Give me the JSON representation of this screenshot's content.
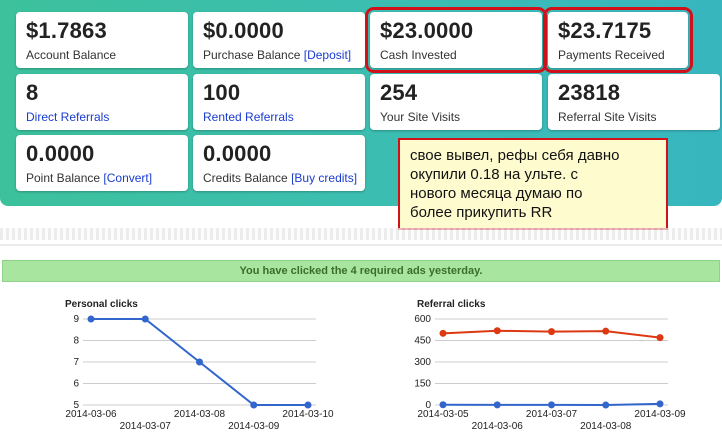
{
  "stats": [
    {
      "value": "$1.7863",
      "label": "Account Balance",
      "link": ""
    },
    {
      "value": "$0.0000",
      "label": "Purchase Balance",
      "link": "[Deposit]"
    },
    {
      "value": "$23.0000",
      "label": "Cash Invested",
      "link": ""
    },
    {
      "value": "$23.7175",
      "label": "Payments Received",
      "link": ""
    },
    {
      "value": "8",
      "label": "Direct Referrals",
      "link": ""
    },
    {
      "value": "100",
      "label": "Rented Referrals",
      "link": ""
    },
    {
      "value": "254",
      "label": "Your Site Visits",
      "link": ""
    },
    {
      "value": "23818",
      "label": "Referral Site Visits",
      "link": ""
    },
    {
      "value": "0.0000",
      "label": "Point Balance",
      "link": "[Convert]"
    },
    {
      "value": "0.0000",
      "label": "Credits Balance",
      "link": "[Buy credits]"
    }
  ],
  "note": {
    "lines": [
      "свое вывел, рефы себя давно",
      "окупили 0.18 на ульте. с",
      "нового месяца думаю по",
      "более прикупить RR"
    ]
  },
  "banner": "You have clicked the 4 required ads yesterday.",
  "colors": {
    "highlight": "#d0111a",
    "link": "#1a3ccf",
    "series_blue": "#3366cc",
    "series_red": "#dc3912"
  },
  "chart_data": [
    {
      "type": "line",
      "title": "Personal clicks",
      "x": [
        "2014-03-06",
        "2014-03-07",
        "2014-03-08",
        "2014-03-09",
        "2014-03-10"
      ],
      "series": [
        {
          "values": [
            9,
            9,
            7,
            5,
            5
          ]
        }
      ],
      "ylim": [
        5,
        9
      ],
      "yticks": [
        5,
        6,
        7,
        8,
        9
      ],
      "grid": true
    },
    {
      "type": "line",
      "title": "Referral clicks",
      "x": [
        "2014-03-05",
        "2014-03-06",
        "2014-03-07",
        "2014-03-08",
        "2014-03-09"
      ],
      "series": [
        {
          "values": [
            500,
            518,
            512,
            515,
            470
          ]
        },
        {
          "values": [
            2,
            1,
            1,
            0,
            8
          ]
        }
      ],
      "ylim": [
        0,
        600
      ],
      "yticks": [
        0,
        150,
        300,
        450,
        600
      ],
      "grid": true
    }
  ]
}
